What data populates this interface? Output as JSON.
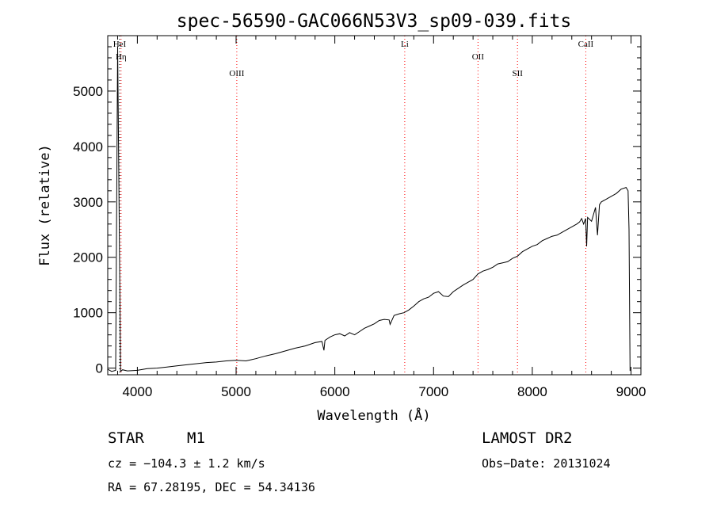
{
  "chart_data": {
    "type": "line",
    "title": "spec-56590-GAC066N53V3_sp09-039.fits",
    "xlabel": "Wavelength (Å)",
    "ylabel": "Flux (relative)",
    "xlim": [
      3700,
      9100
    ],
    "ylim": [
      -120,
      6000
    ],
    "xticks": [
      4000,
      5000,
      6000,
      7000,
      8000,
      9000
    ],
    "yticks": [
      0,
      1000,
      2000,
      3000,
      4000,
      5000
    ],
    "grid": false,
    "series": [
      {
        "x": [
          3700,
          3740,
          3780,
          3800,
          3830,
          3850,
          3900,
          4000,
          4100,
          4200,
          4300,
          4400,
          4500,
          4600,
          4700,
          4800,
          4900,
          5000,
          5100,
          5150,
          5200,
          5300,
          5400,
          5500,
          5600,
          5700,
          5800,
          5870,
          5890,
          5900,
          5950,
          6000,
          6050,
          6100,
          6150,
          6200,
          6250,
          6300,
          6350,
          6400,
          6450,
          6500,
          6550,
          6560,
          6600,
          6650,
          6700,
          6750,
          6800,
          6850,
          6900,
          6950,
          7000,
          7050,
          7100,
          7150,
          7200,
          7250,
          7300,
          7350,
          7400,
          7450,
          7500,
          7550,
          7600,
          7650,
          7700,
          7750,
          7800,
          7850,
          7900,
          7950,
          8000,
          8050,
          8100,
          8150,
          8200,
          8250,
          8300,
          8350,
          8400,
          8450,
          8480,
          8500,
          8520,
          8540,
          8550,
          8560,
          8600,
          8640,
          8660,
          8680,
          8700,
          8750,
          8800,
          8850,
          8900,
          8950,
          8970,
          8980,
          8990
        ],
        "y": [
          -20,
          -60,
          -40,
          5800,
          -60,
          -30,
          -50,
          -40,
          -10,
          0,
          20,
          40,
          60,
          80,
          100,
          110,
          130,
          140,
          130,
          150,
          170,
          220,
          260,
          310,
          360,
          400,
          460,
          480,
          320,
          500,
          560,
          600,
          620,
          580,
          640,
          600,
          660,
          720,
          760,
          800,
          860,
          880,
          870,
          790,
          950,
          980,
          1000,
          1050,
          1120,
          1200,
          1250,
          1280,
          1350,
          1380,
          1300,
          1290,
          1380,
          1440,
          1500,
          1550,
          1600,
          1700,
          1750,
          1780,
          1820,
          1880,
          1900,
          1920,
          1980,
          2020,
          2100,
          2150,
          2200,
          2230,
          2300,
          2340,
          2380,
          2400,
          2450,
          2500,
          2550,
          2600,
          2640,
          2700,
          2600,
          2700,
          2200,
          2720,
          2650,
          2900,
          2400,
          2950,
          3000,
          3050,
          3100,
          3150,
          3230,
          3260,
          3200,
          2500,
          -50
        ]
      }
    ],
    "line_markers": [
      {
        "name": "HeI",
        "x": 3820,
        "color": "#000000"
      },
      {
        "name": "Hη",
        "x": 3835,
        "color": "#ff0000"
      },
      {
        "name": "OIII",
        "x": 5007,
        "color": "#ff0000"
      },
      {
        "name": "Li",
        "x": 6708,
        "color": "#ff0000"
      },
      {
        "name": "OII",
        "x": 7450,
        "color": "#ff0000"
      },
      {
        "name": "SII",
        "x": 7850,
        "color": "#ff0000"
      },
      {
        "name": "CaII",
        "x": 8542,
        "color": "#ff0000"
      }
    ]
  },
  "info": {
    "object_class": "STAR",
    "subclass": "M1",
    "survey": "LAMOST DR2",
    "cz": "cz = −104.3 ± 1.2 km/s",
    "obs_date": "Obs−Date: 20131024",
    "coords": "RA =  67.28195, DEC =  54.34136"
  }
}
